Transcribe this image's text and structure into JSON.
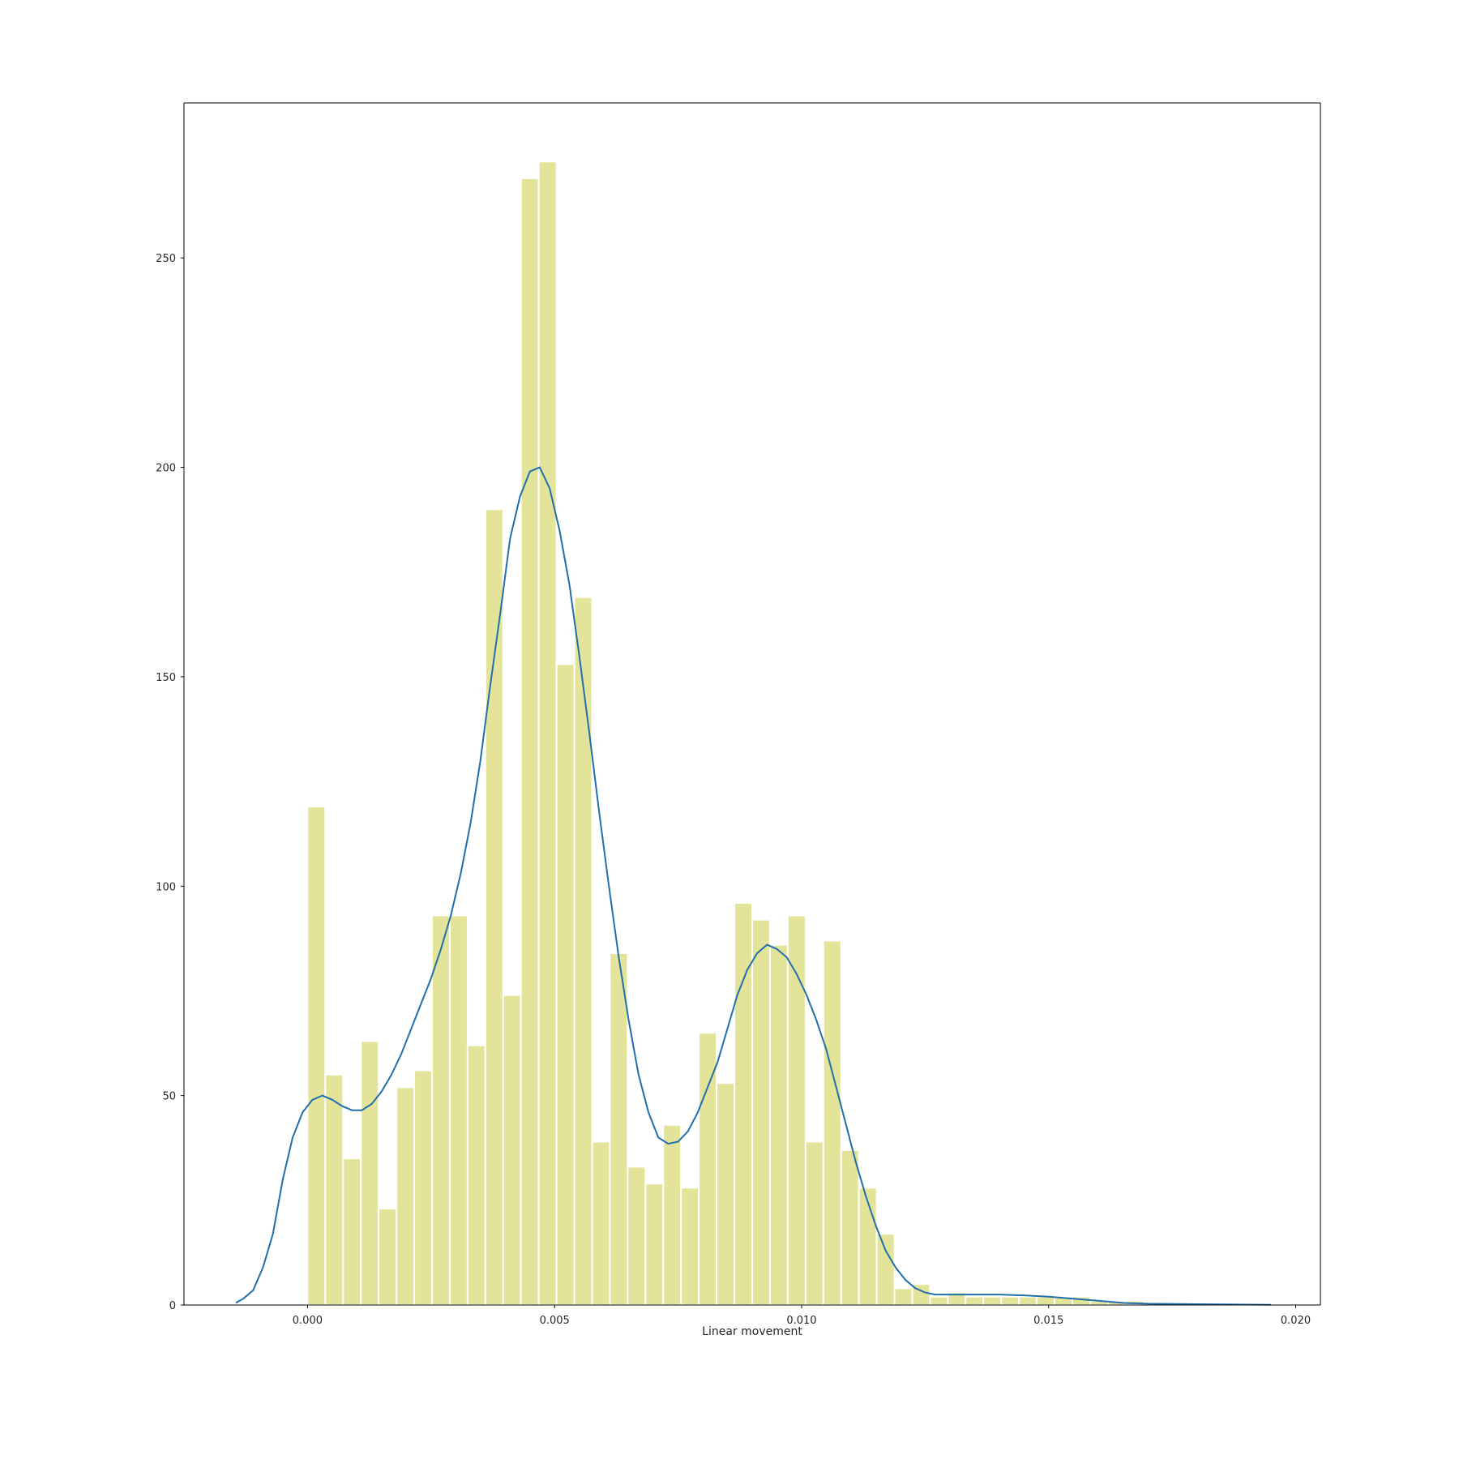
{
  "chart_data": {
    "type": "bar",
    "title": "",
    "xlabel": "Linear movement",
    "ylabel": "",
    "xlim": [
      -0.0025,
      0.0205
    ],
    "ylim": [
      0,
      287
    ],
    "grid": false,
    "xticks": [
      "0.000",
      "0.005",
      "0.010",
      "0.015",
      "0.020"
    ],
    "yticks": [
      "0",
      "50",
      "100",
      "150",
      "200",
      "250"
    ],
    "colors": {
      "bars": "#e3e49a",
      "bar_edge": "#ffffff",
      "kde": "#1f6fad",
      "frame": "#000000"
    },
    "histogram": {
      "bin_start": 0.0,
      "bin_width": 0.00036,
      "counts": [
        119,
        55,
        35,
        63,
        23,
        52,
        56,
        93,
        93,
        62,
        190,
        74,
        269,
        273,
        153,
        169,
        39,
        84,
        33,
        29,
        43,
        28,
        65,
        53,
        96,
        92,
        86,
        93,
        39,
        87,
        37,
        28,
        17,
        4,
        5,
        2,
        3,
        2,
        2,
        2,
        2,
        2,
        2,
        2,
        1,
        1,
        1
      ]
    },
    "kde": {
      "name": "",
      "x": [
        -0.00145,
        -0.0013,
        -0.0011,
        -0.0009,
        -0.0007,
        -0.0005,
        -0.0003,
        -0.0001,
        0.0001,
        0.0003,
        0.0005,
        0.0007,
        0.0009,
        0.0011,
        0.0013,
        0.0015,
        0.0017,
        0.0019,
        0.0021,
        0.0023,
        0.0025,
        0.0027,
        0.0029,
        0.0031,
        0.0033,
        0.0035,
        0.0037,
        0.0039,
        0.0041,
        0.0043,
        0.0045,
        0.0047,
        0.0049,
        0.0051,
        0.0053,
        0.0055,
        0.0057,
        0.0059,
        0.0061,
        0.0063,
        0.0065,
        0.0067,
        0.0069,
        0.0071,
        0.0073,
        0.0075,
        0.0077,
        0.0079,
        0.0081,
        0.0083,
        0.0085,
        0.0087,
        0.0089,
        0.0091,
        0.0093,
        0.0095,
        0.0097,
        0.0099,
        0.0101,
        0.0103,
        0.0105,
        0.0107,
        0.0109,
        0.0111,
        0.0113,
        0.0115,
        0.0117,
        0.0119,
        0.0121,
        0.0123,
        0.0125,
        0.0127,
        0.0129,
        0.0131,
        0.0135,
        0.014,
        0.0145,
        0.015,
        0.0155,
        0.016,
        0.0165,
        0.017,
        0.018,
        0.019,
        0.0195
      ],
      "y": [
        0.5,
        1.5,
        3.5,
        9,
        17,
        30,
        40,
        46,
        49,
        50,
        49,
        47.5,
        46.5,
        46.5,
        48,
        51,
        55,
        60,
        66,
        72,
        78,
        85,
        93,
        103,
        115,
        130,
        148,
        165,
        183,
        193,
        199,
        200,
        195,
        185,
        172,
        155,
        137,
        118,
        100,
        83,
        68,
        55,
        46,
        40,
        38.5,
        39,
        41.5,
        46,
        52,
        58,
        66,
        74,
        80,
        84,
        86,
        85,
        83,
        79,
        74,
        68,
        61,
        52,
        43,
        34,
        26,
        19,
        13,
        9,
        6,
        4,
        3,
        2.5,
        2.5,
        2.5,
        2.5,
        2.5,
        2.3,
        2,
        1.5,
        1,
        0.5,
        0.3,
        0.2,
        0.1,
        0.05
      ]
    }
  }
}
